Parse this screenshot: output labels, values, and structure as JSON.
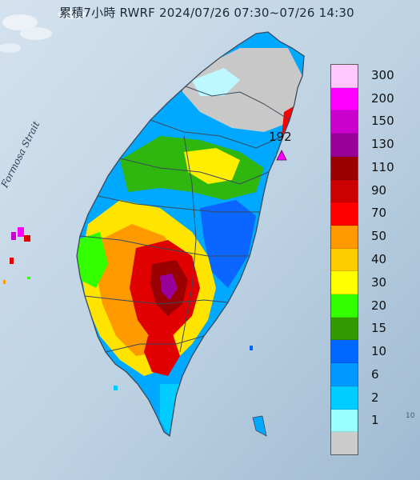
{
  "map": {
    "title": "累積7小時 RWRF 2024/07/26 07:30~07/26 14:30",
    "water_label": "Formosa Strait",
    "max_value_label": "192",
    "corner_mark": "10",
    "colors": {
      "sea": "#c8d9e6",
      "mountain_line": "#3a4a5a"
    }
  },
  "legend": {
    "levels": [
      {
        "label": "300",
        "color": "#ffc8ff"
      },
      {
        "label": "200",
        "color": "#ff00ff"
      },
      {
        "label": "150",
        "color": "#cc00cc"
      },
      {
        "label": "130",
        "color": "#990099"
      },
      {
        "label": "110",
        "color": "#990000"
      },
      {
        "label": "90",
        "color": "#cc0000"
      },
      {
        "label": "70",
        "color": "#ff0000"
      },
      {
        "label": "50",
        "color": "#ff9900"
      },
      {
        "label": "40",
        "color": "#ffcc00"
      },
      {
        "label": "30",
        "color": "#ffff00"
      },
      {
        "label": "20",
        "color": "#33ff00"
      },
      {
        "label": "15",
        "color": "#339900"
      },
      {
        "label": "10",
        "color": "#0066ff"
      },
      {
        "label": "6",
        "color": "#0099ff"
      },
      {
        "label": "2",
        "color": "#00ccff"
      },
      {
        "label": "1",
        "color": "#99ffff"
      },
      {
        "label": "",
        "color": "#cccccc"
      }
    ]
  }
}
